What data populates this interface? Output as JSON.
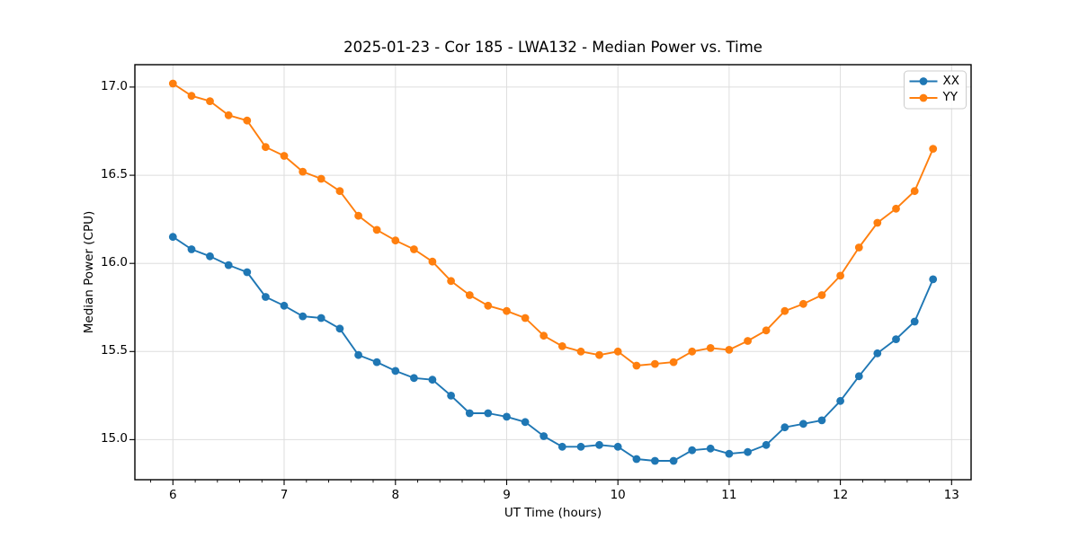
{
  "chart_data": {
    "type": "line",
    "title": "2025-01-23 - Cor 185 - LWA132 - Median Power vs. Time",
    "xlabel": "UT Time (hours)",
    "ylabel": "Median Power (CPU)",
    "x": [
      6.0,
      6.167,
      6.333,
      6.5,
      6.667,
      6.833,
      7.0,
      7.167,
      7.333,
      7.5,
      7.667,
      7.833,
      8.0,
      8.167,
      8.333,
      8.5,
      8.667,
      8.833,
      9.0,
      9.167,
      9.333,
      9.5,
      9.667,
      9.833,
      10.0,
      10.167,
      10.333,
      10.5,
      10.667,
      10.833,
      11.0,
      11.167,
      11.333,
      11.5,
      11.667,
      11.833,
      12.0,
      12.167,
      12.333,
      12.5,
      12.667,
      12.833
    ],
    "series": [
      {
        "name": "XX",
        "color": "#1f77b4",
        "values": [
          16.15,
          16.08,
          16.04,
          15.99,
          15.95,
          15.81,
          15.76,
          15.7,
          15.69,
          15.63,
          15.48,
          15.44,
          15.39,
          15.35,
          15.34,
          15.25,
          15.15,
          15.15,
          15.13,
          15.1,
          15.02,
          14.96,
          14.96,
          14.97,
          14.96,
          14.89,
          14.88,
          14.88,
          14.94,
          14.95,
          14.92,
          14.93,
          14.97,
          15.07,
          15.09,
          15.11,
          15.22,
          15.36,
          15.49,
          15.57,
          15.67,
          15.91
        ]
      },
      {
        "name": "YY",
        "color": "#ff7f0e",
        "values": [
          17.02,
          16.95,
          16.92,
          16.84,
          16.81,
          16.66,
          16.61,
          16.52,
          16.48,
          16.41,
          16.27,
          16.19,
          16.13,
          16.08,
          16.01,
          15.9,
          15.82,
          15.76,
          15.73,
          15.69,
          15.59,
          15.53,
          15.5,
          15.48,
          15.5,
          15.42,
          15.43,
          15.44,
          15.5,
          15.52,
          15.51,
          15.56,
          15.62,
          15.73,
          15.77,
          15.82,
          15.93,
          16.09,
          16.23,
          16.31,
          16.41,
          16.65
        ]
      }
    ],
    "x_ticks": [
      6,
      7,
      8,
      9,
      10,
      11,
      12,
      13
    ],
    "x_tick_labels": [
      "6",
      "7",
      "8",
      "9",
      "10",
      "11",
      "12",
      "13"
    ],
    "y_ticks": [
      15.0,
      15.5,
      16.0,
      16.5,
      17.0
    ],
    "y_tick_labels": [
      "15.0",
      "15.5",
      "16.0",
      "16.5",
      "17.0"
    ],
    "xlim": [
      5.658,
      13.175
    ],
    "ylim": [
      14.773,
      17.127
    ],
    "x_minor_tick_step": 0.2,
    "grid": true,
    "grid_color": "#dedede",
    "legend_position": "upper right",
    "legend_entries": [
      "XX",
      "YY"
    ],
    "background": "#ffffff"
  }
}
